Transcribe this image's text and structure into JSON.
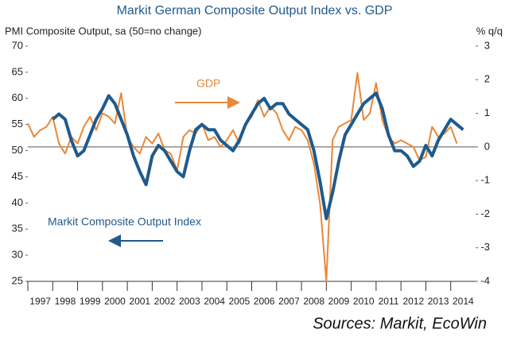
{
  "chart_data": {
    "type": "line",
    "title": "Markit German Composite Output Index vs. GDP",
    "y_label": "PMI Composite Output, sa (50=no change)",
    "y2_label": "% q/q",
    "source": "Sources: Markit, EcoWin",
    "xlim": [
      1997,
      2015
    ],
    "xticks": [
      1997,
      1998,
      1999,
      2000,
      2001,
      2002,
      2003,
      2004,
      2005,
      2006,
      2007,
      2008,
      2009,
      2010,
      2011,
      2012,
      2013,
      2014
    ],
    "ylim": [
      25,
      70
    ],
    "yticks": [
      25,
      30,
      35,
      40,
      45,
      50,
      55,
      60,
      65,
      70
    ],
    "y2lim": [
      -4,
      3
    ],
    "y2ticks": [
      -4,
      -3,
      -2,
      -1,
      0,
      1,
      2,
      3
    ],
    "series": [
      {
        "name": "Markit Composite Output Index",
        "color": "#1f5a8c",
        "x": [
          1998,
          1998.25,
          1998.5,
          1998.75,
          1999,
          1999.25,
          1999.5,
          1999.75,
          2000,
          2000.25,
          2000.5,
          2000.75,
          2001,
          2001.25,
          2001.5,
          2001.75,
          2002,
          2002.25,
          2002.5,
          2002.75,
          2003,
          2003.25,
          2003.5,
          2003.75,
          2004,
          2004.25,
          2004.5,
          2004.75,
          2005,
          2005.25,
          2005.5,
          2005.75,
          2006,
          2006.25,
          2006.5,
          2006.75,
          2007,
          2007.25,
          2007.5,
          2007.75,
          2008,
          2008.25,
          2008.5,
          2008.75,
          2009,
          2009.25,
          2009.5,
          2009.75,
          2010,
          2010.25,
          2010.5,
          2010.75,
          2011,
          2011.25,
          2011.5,
          2011.75,
          2012,
          2012.25,
          2012.5,
          2012.75,
          2013,
          2013.25,
          2013.5,
          2013.75,
          2014,
          2014.25,
          2014.5
        ],
        "values": [
          56,
          57,
          56,
          52,
          49,
          50,
          53,
          56,
          58,
          60.5,
          59,
          56,
          53,
          49,
          46,
          43.5,
          49,
          51,
          50,
          48,
          46,
          45,
          50,
          54,
          55,
          54,
          54,
          52,
          51,
          50,
          52,
          55,
          57,
          59,
          60,
          58,
          59,
          59,
          57,
          56,
          55,
          54,
          50,
          44,
          37,
          42,
          48,
          53,
          55,
          57,
          59,
          60,
          61,
          58,
          53,
          50,
          50,
          49,
          47,
          48,
          51,
          49,
          52,
          54,
          56,
          55,
          54
        ]
      },
      {
        "name": "GDP",
        "color": "#e8883a",
        "axis": "y2",
        "x": [
          1997,
          1997.25,
          1997.5,
          1997.75,
          1998,
          1998.25,
          1998.5,
          1998.75,
          1999,
          1999.25,
          1999.5,
          1999.75,
          2000,
          2000.25,
          2000.5,
          2000.75,
          2001,
          2001.25,
          2001.5,
          2001.75,
          2002,
          2002.25,
          2002.5,
          2002.75,
          2003,
          2003.25,
          2003.5,
          2003.75,
          2004,
          2004.25,
          2004.5,
          2004.75,
          2005,
          2005.25,
          2005.5,
          2005.75,
          2006,
          2006.25,
          2006.5,
          2006.75,
          2007,
          2007.25,
          2007.5,
          2007.75,
          2008,
          2008.25,
          2008.5,
          2008.75,
          2009,
          2009.25,
          2009.5,
          2009.75,
          2010,
          2010.25,
          2010.5,
          2010.75,
          2011,
          2011.25,
          2011.5,
          2011.75,
          2012,
          2012.25,
          2012.5,
          2012.75,
          2013,
          2013.25,
          2013.5,
          2013.75,
          2014,
          2014.25
        ],
        "values": [
          0.7,
          0.3,
          0.5,
          0.6,
          0.9,
          0.1,
          -0.2,
          0.3,
          0.1,
          0.6,
          0.9,
          0.5,
          1.0,
          0.9,
          0.7,
          1.6,
          0.3,
          0.0,
          -0.2,
          0.3,
          0.1,
          0.4,
          -0.1,
          -0.2,
          -0.7,
          0.3,
          0.5,
          0.4,
          0.7,
          0.2,
          0.3,
          0.0,
          0.2,
          0.5,
          0.1,
          0.7,
          0.9,
          1.4,
          0.9,
          1.2,
          1.0,
          0.5,
          0.2,
          0.6,
          0.5,
          0.2,
          -0.5,
          -1.7,
          -4.0,
          0.2,
          0.6,
          0.7,
          0.8,
          2.2,
          0.8,
          1.0,
          1.9,
          0.8,
          0.3,
          0.1,
          0.2,
          0.1,
          0.0,
          -0.4,
          -0.3,
          0.6,
          0.3,
          0.4,
          0.6,
          0.1
        ]
      }
    ]
  }
}
